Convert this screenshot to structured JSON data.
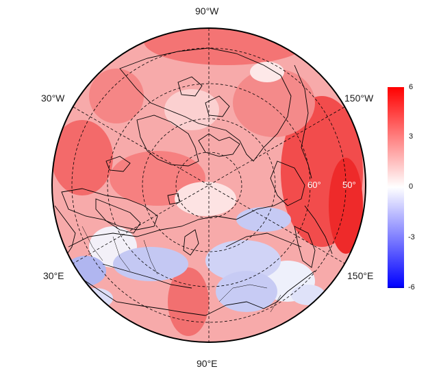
{
  "projection": "north-polar-stereographic",
  "longitude_labels": {
    "top": "90°W",
    "bottom": "90°E",
    "upper_left": "30°W",
    "upper_right": "150°W",
    "lower_left": "30°E",
    "lower_right": "150°E"
  },
  "latitude_labels": [
    "60°",
    "50°"
  ],
  "colorbar": {
    "ticks": [
      "6",
      "3",
      "0",
      "-3",
      "-6"
    ],
    "range": [
      -6,
      6
    ],
    "colors": {
      "max": "#ff0000",
      "mid": "#ffffff",
      "min": "#0000ff"
    }
  },
  "map_style": {
    "land_outline_color": "#000000",
    "graticule_color": "#000000",
    "graticule_style": "dashed"
  }
}
